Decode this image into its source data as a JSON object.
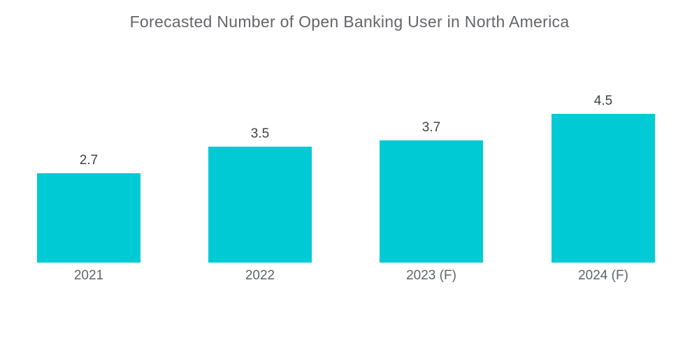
{
  "title": "Forecasted Number of Open Banking User in North America",
  "chart_data": {
    "type": "bar",
    "title": "Forecasted Number of Open Banking User in North America",
    "categories": [
      "2021",
      "2022",
      "2023 (F)",
      "2024 (F)"
    ],
    "values": [
      2.7,
      3.5,
      3.7,
      4.5
    ],
    "value_labels": [
      "2.7",
      "3.5",
      "3.7",
      "4.5"
    ],
    "xlabel": "",
    "ylabel": "",
    "ylim": [
      0,
      5
    ],
    "grid": false,
    "axes_shown": false,
    "legend": false,
    "bar_color": "#00cbd4",
    "title_color": "#636569",
    "value_label_color": "#3f4245",
    "category_label_color": "#5f6368",
    "background_color": "#ffffff"
  }
}
